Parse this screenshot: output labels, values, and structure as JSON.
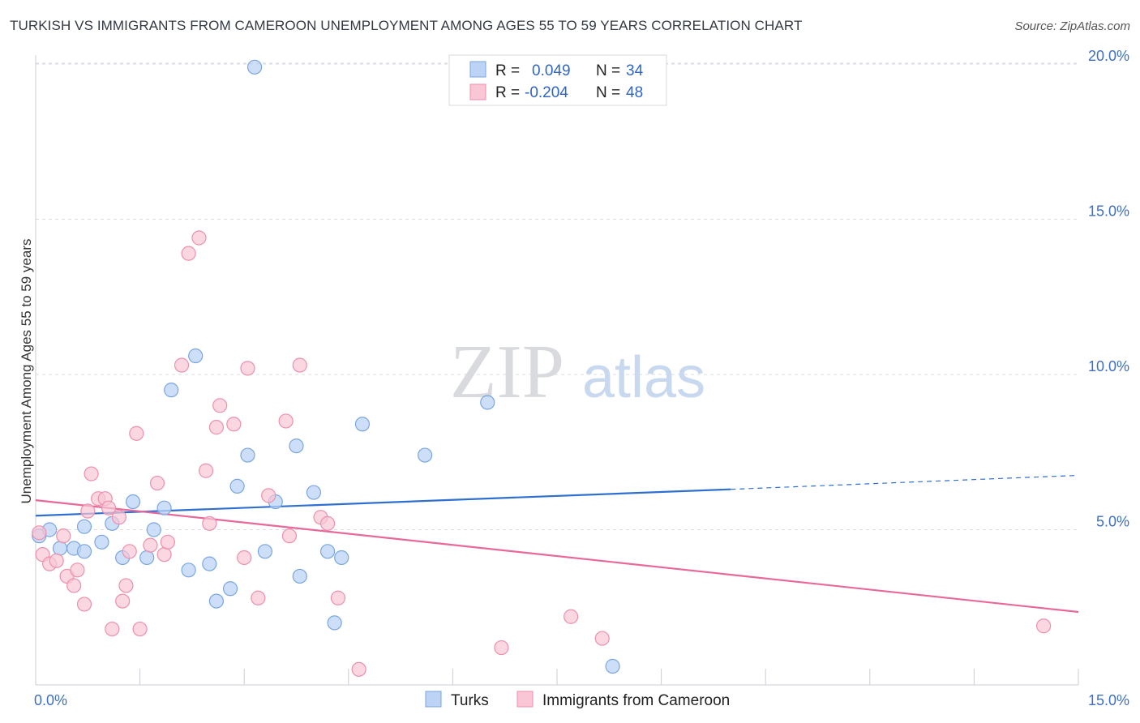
{
  "title": "TURKISH VS IMMIGRANTS FROM CAMEROON UNEMPLOYMENT AMONG AGES 55 TO 59 YEARS CORRELATION CHART",
  "source": "Source: ZipAtlas.com",
  "watermark": {
    "zip": "ZIP",
    "atlas": "atlas"
  },
  "colors": {
    "turks_fill": "#bcd3f5",
    "turks_stroke": "#7aa6e0",
    "turks_line": "#2f6fd0",
    "cam_fill": "#f8c6d4",
    "cam_stroke": "#ec90ad",
    "cam_line": "#e8689a",
    "grid": "#d9dde3",
    "tick_label": "#3f6fc0"
  },
  "legend": {
    "rows": [
      {
        "r_label": "R =",
        "r_value": "0.049",
        "n_label": "N =",
        "n_value": "34"
      },
      {
        "r_label": "R =",
        "r_value": "-0.204",
        "n_label": "N =",
        "n_value": "48"
      }
    ]
  },
  "chart_data": {
    "type": "scatter",
    "title": "TURKISH VS IMMIGRANTS FROM CAMEROON UNEMPLOYMENT AMONG AGES 55 TO 59 YEARS CORRELATION CHART",
    "xlabel": "",
    "ylabel": "Unemployment Among Ages 55 to 59 years",
    "xlim": [
      0,
      15
    ],
    "ylim": [
      0,
      20.5
    ],
    "x_ticks": [
      {
        "value": 0,
        "label": "0.0%"
      },
      {
        "value": 15,
        "label": "15.0%"
      }
    ],
    "y_ticks": [
      {
        "value": 5,
        "label": "5.0%"
      },
      {
        "value": 10,
        "label": "10.0%"
      },
      {
        "value": 15,
        "label": "15.0%"
      },
      {
        "value": 20,
        "label": "20.0%"
      }
    ],
    "grid": true,
    "legend_position": "top-center and bottom",
    "series": [
      {
        "name": "Turks",
        "points": [
          [
            0.05,
            4.8
          ],
          [
            0.2,
            5.0
          ],
          [
            0.35,
            4.4
          ],
          [
            0.55,
            4.4
          ],
          [
            0.7,
            4.3
          ],
          [
            0.7,
            5.1
          ],
          [
            0.95,
            4.6
          ],
          [
            1.1,
            5.2
          ],
          [
            1.25,
            4.1
          ],
          [
            1.4,
            5.9
          ],
          [
            1.6,
            4.1
          ],
          [
            1.7,
            5.0
          ],
          [
            1.85,
            5.7
          ],
          [
            1.95,
            9.5
          ],
          [
            2.2,
            3.7
          ],
          [
            2.3,
            10.6
          ],
          [
            2.5,
            3.9
          ],
          [
            2.6,
            2.7
          ],
          [
            2.8,
            3.1
          ],
          [
            2.9,
            6.4
          ],
          [
            3.05,
            7.4
          ],
          [
            3.15,
            19.9
          ],
          [
            3.3,
            4.3
          ],
          [
            3.45,
            5.9
          ],
          [
            3.75,
            7.7
          ],
          [
            3.8,
            3.5
          ],
          [
            4.0,
            6.2
          ],
          [
            4.2,
            4.3
          ],
          [
            4.3,
            2.0
          ],
          [
            4.4,
            4.1
          ],
          [
            4.7,
            8.4
          ],
          [
            5.6,
            7.4
          ],
          [
            6.5,
            9.1
          ],
          [
            8.3,
            0.6
          ]
        ],
        "trend": {
          "x": [
            0,
            10.0
          ],
          "y": [
            5.45,
            6.3
          ],
          "dashed_to": [
            15,
            6.75
          ]
        }
      },
      {
        "name": "Immigrants from Cameroon",
        "points": [
          [
            0.05,
            4.9
          ],
          [
            0.1,
            4.2
          ],
          [
            0.2,
            3.9
          ],
          [
            0.3,
            4.0
          ],
          [
            0.4,
            4.8
          ],
          [
            0.45,
            3.5
          ],
          [
            0.55,
            3.2
          ],
          [
            0.6,
            3.7
          ],
          [
            0.7,
            2.6
          ],
          [
            0.75,
            5.6
          ],
          [
            0.8,
            6.8
          ],
          [
            0.9,
            6.0
          ],
          [
            1.0,
            6.0
          ],
          [
            1.05,
            5.7
          ],
          [
            1.1,
            1.8
          ],
          [
            1.2,
            5.4
          ],
          [
            1.25,
            2.7
          ],
          [
            1.3,
            3.2
          ],
          [
            1.35,
            4.3
          ],
          [
            1.45,
            8.1
          ],
          [
            1.5,
            1.8
          ],
          [
            1.65,
            4.5
          ],
          [
            1.75,
            6.5
          ],
          [
            1.85,
            4.2
          ],
          [
            1.9,
            4.6
          ],
          [
            2.1,
            10.3
          ],
          [
            2.2,
            13.9
          ],
          [
            2.35,
            14.4
          ],
          [
            2.45,
            6.9
          ],
          [
            2.5,
            5.2
          ],
          [
            2.6,
            8.3
          ],
          [
            2.65,
            9.0
          ],
          [
            2.85,
            8.4
          ],
          [
            3.0,
            4.1
          ],
          [
            3.05,
            10.2
          ],
          [
            3.2,
            2.8
          ],
          [
            3.35,
            6.1
          ],
          [
            3.6,
            8.5
          ],
          [
            3.65,
            4.8
          ],
          [
            3.8,
            10.3
          ],
          [
            4.1,
            5.4
          ],
          [
            4.2,
            5.2
          ],
          [
            4.35,
            2.8
          ],
          [
            4.65,
            0.5
          ],
          [
            6.7,
            1.2
          ],
          [
            7.7,
            2.2
          ],
          [
            8.15,
            1.5
          ],
          [
            14.5,
            1.9
          ]
        ],
        "trend": {
          "x": [
            0,
            15
          ],
          "y": [
            5.95,
            2.35
          ]
        }
      }
    ]
  }
}
